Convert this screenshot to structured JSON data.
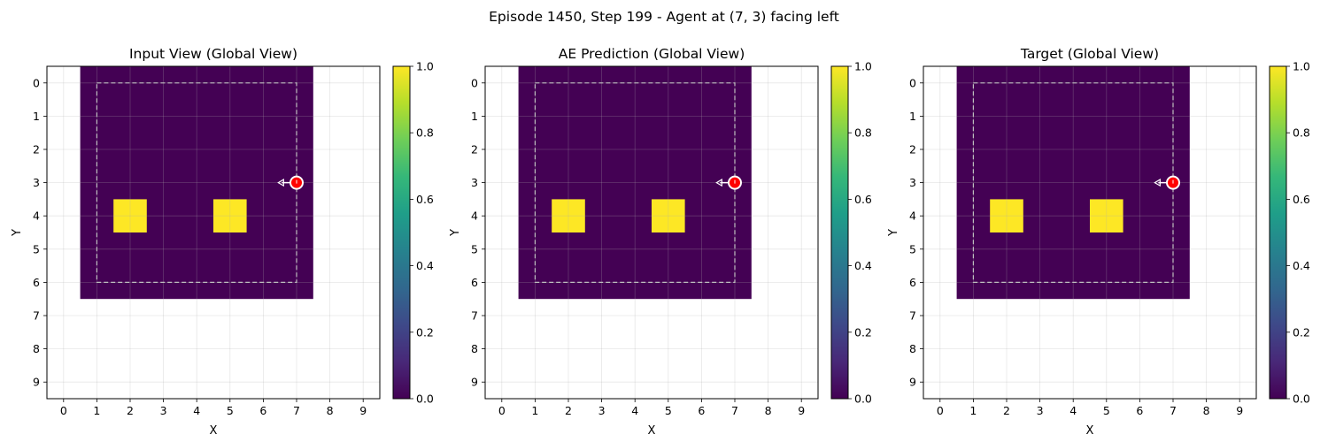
{
  "figure": {
    "suptitle": "Episode 1450, Step 199 - Agent at (7, 3) facing left"
  },
  "colormap": {
    "name": "viridis",
    "stops": [
      "#440154",
      "#482878",
      "#3e4989",
      "#31688e",
      "#26828e",
      "#1f9e89",
      "#35b779",
      "#6ece58",
      "#b5de2b",
      "#fde725"
    ]
  },
  "colors": {
    "empty": "#440154",
    "filled": "#fde725",
    "agent": "#ff0000",
    "dashed_box": "#bfbfbf"
  },
  "chart_data": [
    {
      "type": "heatmap",
      "title": "Input View (Global View)",
      "xlabel": "X",
      "ylabel": "Y",
      "x_ticks": [
        "0",
        "1",
        "2",
        "3",
        "4",
        "5",
        "6",
        "7",
        "8",
        "9"
      ],
      "y_ticks": [
        "0",
        "1",
        "2",
        "3",
        "4",
        "5",
        "6",
        "7",
        "8",
        "9"
      ],
      "xlim": [
        -0.5,
        9.5
      ],
      "ylim": [
        9.5,
        -0.5
      ],
      "grid": true,
      "observed_region": {
        "x": [
          0.5,
          7.5
        ],
        "y": [
          -0.5,
          6.5
        ]
      },
      "view_box": {
        "x": [
          1,
          7
        ],
        "y": [
          0,
          6
        ]
      },
      "cells_value_1": [
        [
          2,
          4
        ],
        [
          5,
          4
        ]
      ],
      "agent": {
        "x": 7,
        "y": 3,
        "facing": "left"
      },
      "colorbar": {
        "min": 0.0,
        "max": 1.0,
        "ticks": [
          "0.0",
          "0.2",
          "0.4",
          "0.6",
          "0.8",
          "1.0"
        ]
      }
    },
    {
      "type": "heatmap",
      "title": "AE Prediction (Global View)",
      "xlabel": "X",
      "ylabel": "Y",
      "x_ticks": [
        "0",
        "1",
        "2",
        "3",
        "4",
        "5",
        "6",
        "7",
        "8",
        "9"
      ],
      "y_ticks": [
        "0",
        "1",
        "2",
        "3",
        "4",
        "5",
        "6",
        "7",
        "8",
        "9"
      ],
      "xlim": [
        -0.5,
        9.5
      ],
      "ylim": [
        9.5,
        -0.5
      ],
      "grid": true,
      "observed_region": {
        "x": [
          0.5,
          7.5
        ],
        "y": [
          -0.5,
          6.5
        ]
      },
      "view_box": {
        "x": [
          1,
          7
        ],
        "y": [
          0,
          6
        ]
      },
      "cells_value_1": [
        [
          2,
          4
        ],
        [
          5,
          4
        ]
      ],
      "agent": {
        "x": 7,
        "y": 3,
        "facing": "left"
      },
      "colorbar": {
        "min": 0.0,
        "max": 1.0,
        "ticks": [
          "0.0",
          "0.2",
          "0.4",
          "0.6",
          "0.8",
          "1.0"
        ]
      }
    },
    {
      "type": "heatmap",
      "title": "Target (Global View)",
      "xlabel": "X",
      "ylabel": "Y",
      "x_ticks": [
        "0",
        "1",
        "2",
        "3",
        "4",
        "5",
        "6",
        "7",
        "8",
        "9"
      ],
      "y_ticks": [
        "0",
        "1",
        "2",
        "3",
        "4",
        "5",
        "6",
        "7",
        "8",
        "9"
      ],
      "xlim": [
        -0.5,
        9.5
      ],
      "ylim": [
        9.5,
        -0.5
      ],
      "grid": true,
      "observed_region": {
        "x": [
          0.5,
          7.5
        ],
        "y": [
          -0.5,
          6.5
        ]
      },
      "view_box": {
        "x": [
          1,
          7
        ],
        "y": [
          0,
          6
        ]
      },
      "cells_value_1": [
        [
          2,
          4
        ],
        [
          5,
          4
        ]
      ],
      "agent": {
        "x": 7,
        "y": 3,
        "facing": "left"
      },
      "colorbar": {
        "min": 0.0,
        "max": 1.0,
        "ticks": [
          "0.0",
          "0.2",
          "0.4",
          "0.6",
          "0.8",
          "1.0"
        ]
      }
    }
  ]
}
